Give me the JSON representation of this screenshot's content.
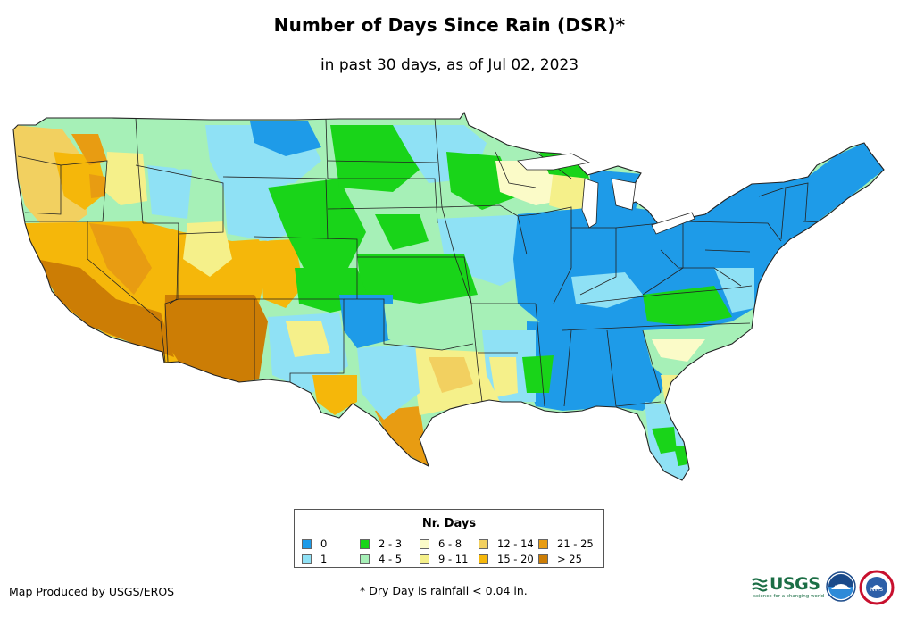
{
  "title": "Number of Days Since Rain (DSR)*",
  "subtitle": "in past 30 days, as of Jul 02, 2023",
  "legend": {
    "title": "Nr. Days",
    "items": [
      {
        "label": "0",
        "color": "#1e9be8"
      },
      {
        "label": "1",
        "color": "#8fe1f5"
      },
      {
        "label": "2 - 3",
        "color": "#19d419"
      },
      {
        "label": "4 - 5",
        "color": "#a6f0b7"
      },
      {
        "label": "6 - 8",
        "color": "#fbfbc8"
      },
      {
        "label": "9 - 11",
        "color": "#f5f08a"
      },
      {
        "label": "12 - 14",
        "color": "#f2d060"
      },
      {
        "label": "15 - 20",
        "color": "#f5b70a"
      },
      {
        "label": "21 - 25",
        "color": "#e89c12"
      },
      {
        "label": "> 25",
        "color": "#cc7d05"
      }
    ]
  },
  "credit": "Map Produced by USGS/EROS",
  "footnote": "* Dry Day is rainfall < 0.04 in.",
  "logos": {
    "usgs": "USGS",
    "usgs_tagline": "science for a changing world",
    "noaa": "noaa",
    "nws": "NWS"
  }
}
